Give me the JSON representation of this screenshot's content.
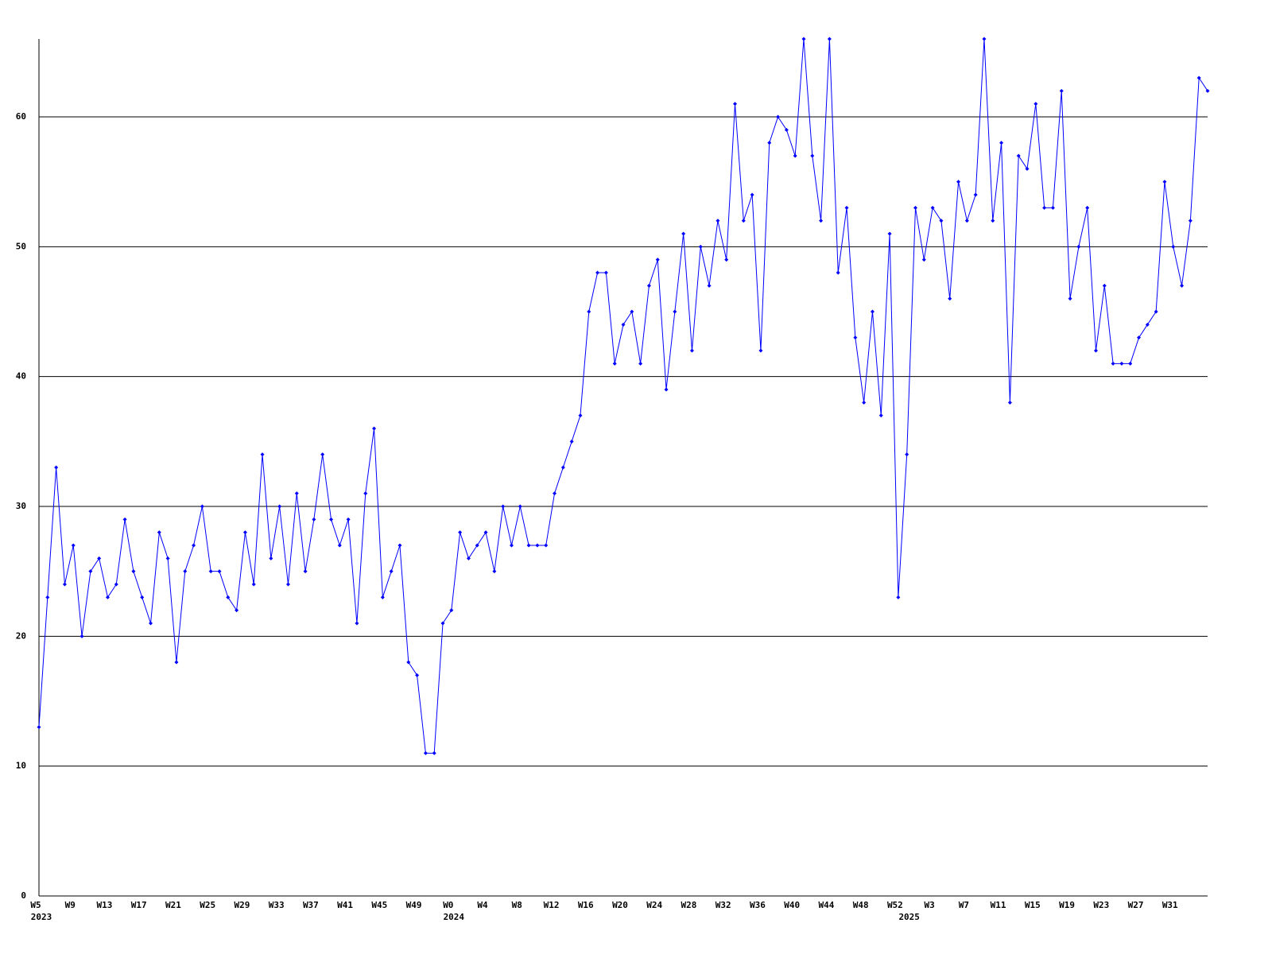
{
  "chart_data": {
    "type": "line",
    "groups": [
      {
        "year": "2023",
        "weeks": [
          "W5",
          null,
          null,
          null,
          "W9",
          null,
          null,
          null,
          "W13",
          null,
          null,
          null,
          "W17",
          null,
          null,
          null,
          "W21",
          null,
          null,
          null,
          "W25",
          null,
          null,
          null,
          "W29",
          null,
          null,
          null,
          "W33",
          null,
          null,
          null,
          "W37",
          null,
          null,
          null,
          "W41",
          null,
          null,
          null,
          "W45",
          null,
          null,
          null,
          "W49",
          null,
          null,
          null
        ]
      },
      {
        "year": "2024",
        "weeks": [
          "W0",
          null,
          null,
          null,
          "W4",
          null,
          null,
          null,
          "W8",
          null,
          null,
          null,
          "W12",
          null,
          null,
          null,
          "W16",
          null,
          null,
          null,
          "W20",
          null,
          null,
          null,
          "W24",
          null,
          null,
          null,
          "W28",
          null,
          null,
          null,
          "W32",
          null,
          null,
          null,
          "W36",
          null,
          null,
          null,
          "W40",
          null,
          null,
          null,
          "W44",
          null,
          null,
          null,
          "W48",
          null,
          null,
          null,
          "W52"
        ]
      },
      {
        "year": "2025",
        "weeks": [
          null,
          null,
          null,
          "W3",
          null,
          null,
          null,
          "W7",
          null,
          null,
          null,
          "W11",
          null,
          null,
          null,
          "W15",
          null,
          null,
          null,
          "W19",
          null,
          null,
          null,
          "W23",
          null,
          null,
          null,
          "W27",
          null,
          null,
          null,
          "W31",
          null,
          null,
          null,
          null
        ]
      }
    ],
    "series": [
      {
        "color": "#0000ff",
        "values": [
          13,
          23,
          33,
          24,
          27,
          20,
          25,
          26,
          23,
          24,
          29,
          25,
          23,
          21,
          28,
          26,
          18,
          25,
          27,
          30,
          25,
          25,
          23,
          22,
          28,
          24,
          34,
          26,
          30,
          24,
          31,
          25,
          29,
          34,
          29,
          27,
          29,
          21,
          31,
          36,
          23,
          25,
          27,
          18,
          17,
          11,
          11,
          21,
          22,
          28,
          26,
          27,
          28,
          25,
          30,
          27,
          30,
          27,
          27,
          27,
          31,
          33,
          35,
          37,
          45,
          48,
          48,
          41,
          44,
          45,
          41,
          47,
          49,
          39,
          45,
          51,
          42,
          50,
          47,
          52,
          49,
          61,
          52,
          54,
          42,
          58,
          60,
          59,
          57,
          66,
          57,
          52,
          66,
          48,
          53,
          43,
          38,
          45,
          37,
          51,
          23,
          34,
          53,
          49,
          53,
          52,
          46,
          55,
          52,
          54,
          66,
          52,
          58,
          38,
          57,
          56,
          61,
          53,
          53,
          62,
          46,
          50,
          53,
          42,
          47,
          41,
          41,
          41,
          43,
          44,
          45,
          55,
          50,
          47,
          52,
          63,
          62
        ]
      }
    ],
    "ylim": [
      0,
      66
    ],
    "yticks": [
      0,
      10,
      20,
      30,
      40,
      50,
      60
    ],
    "grid": true
  }
}
